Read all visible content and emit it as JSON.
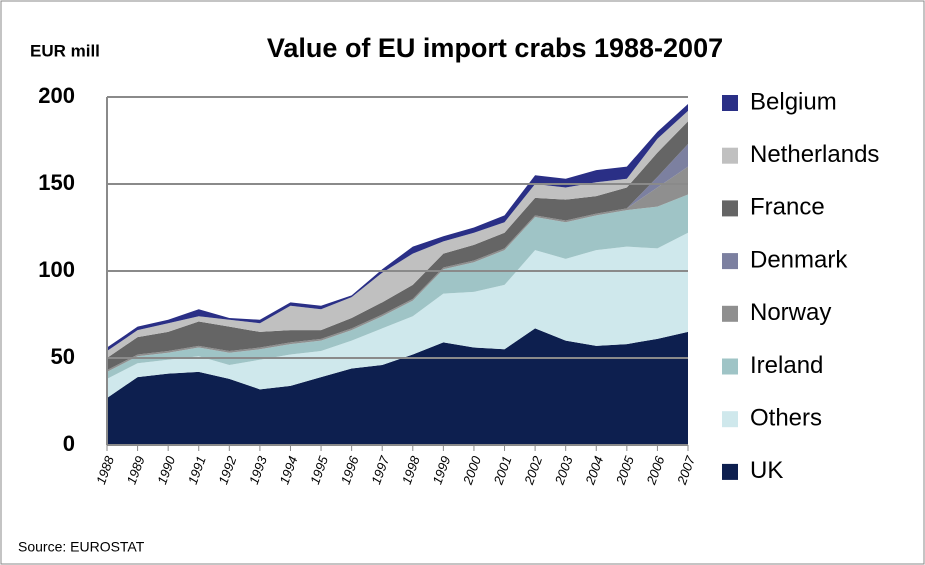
{
  "chart_data": {
    "type": "stacked_area",
    "title": "Value of EU import crabs 1988-2007",
    "y_label": "EUR mill",
    "source": "Source: EUROSTAT",
    "categories": [
      "1988",
      "1989",
      "1990",
      "1991",
      "1992",
      "1993",
      "1994",
      "1995",
      "1996",
      "1997",
      "1998",
      "1999",
      "2000",
      "2001",
      "2002",
      "2003",
      "2004",
      "2005",
      "2006",
      "2007"
    ],
    "ylim": [
      0,
      200
    ],
    "yticks": [
      0,
      50,
      100,
      150,
      200
    ],
    "grid": true,
    "legend": "right",
    "series": [
      {
        "name": "UK",
        "color": "#0d1f4f",
        "values": [
          27,
          39,
          41,
          42,
          38,
          32,
          34,
          39,
          44,
          46,
          52,
          59,
          56,
          55,
          67,
          60,
          57,
          58,
          61,
          65
        ]
      },
      {
        "name": "Others",
        "color": "#cfe8ec",
        "values": [
          11,
          8,
          8,
          9,
          8,
          17,
          18,
          15,
          16,
          21,
          22,
          28,
          32,
          37,
          45,
          47,
          55,
          56,
          52,
          57
        ]
      },
      {
        "name": "Ireland",
        "color": "#9fc4c6",
        "values": [
          4,
          4,
          4,
          5,
          7,
          6,
          6,
          6,
          6,
          7,
          9,
          14,
          17,
          20,
          19,
          21,
          20,
          21,
          24,
          22
        ]
      },
      {
        "name": "Norway",
        "color": "#8f8f8f",
        "values": [
          1,
          1,
          1,
          1,
          1,
          1,
          1,
          1,
          1,
          1,
          1,
          1,
          1,
          1,
          1,
          1,
          1,
          1,
          11,
          16
        ]
      },
      {
        "name": "Denmark",
        "color": "#7c80a0",
        "values": [
          0,
          0,
          0,
          0,
          0,
          0,
          0,
          0,
          0,
          0,
          0,
          0,
          0,
          0,
          0,
          0,
          0,
          0,
          6,
          13
        ]
      },
      {
        "name": "France",
        "color": "#656565",
        "values": [
          7,
          10,
          11,
          14,
          14,
          9,
          7,
          5,
          6,
          7,
          8,
          8,
          9,
          9,
          10,
          12,
          10,
          12,
          14,
          13
        ]
      },
      {
        "name": "Netherlands",
        "color": "#c0c0c0",
        "values": [
          4,
          4,
          5,
          3,
          4,
          5,
          14,
          12,
          12,
          17,
          18,
          7,
          7,
          6,
          8,
          7,
          8,
          5,
          8,
          6
        ]
      },
      {
        "name": "Belgium",
        "color": "#2a2f86",
        "values": [
          2,
          2,
          2,
          4,
          1,
          2,
          2,
          2,
          1,
          2,
          4,
          3,
          3,
          4,
          5,
          5,
          7,
          7,
          4,
          4
        ]
      }
    ]
  }
}
